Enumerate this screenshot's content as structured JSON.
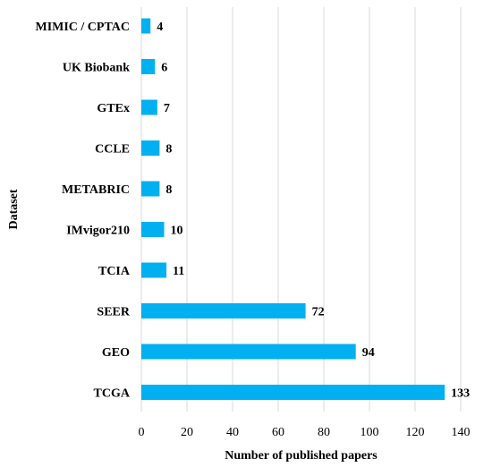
{
  "chart_data": {
    "type": "bar",
    "orientation": "horizontal",
    "categories": [
      "MIMIC / CPTAC",
      "UK Biobank",
      "GTEx",
      "CCLE",
      "METABRIC",
      "IMvigor210",
      "TCIA",
      "SEER",
      "GEO",
      "TCGA"
    ],
    "values": [
      4,
      6,
      7,
      8,
      8,
      10,
      11,
      72,
      94,
      133
    ],
    "xlabel": "Number of published papers",
    "ylabel": "Dataset",
    "xlim": [
      0,
      140
    ],
    "x_ticks": [
      "0",
      "20",
      "40",
      "60",
      "80",
      "100",
      "120",
      "140"
    ],
    "grid": "vertical",
    "bar_color": "#00b0f0",
    "gridline_color": "#d9d9d9",
    "data_labels": true
  }
}
